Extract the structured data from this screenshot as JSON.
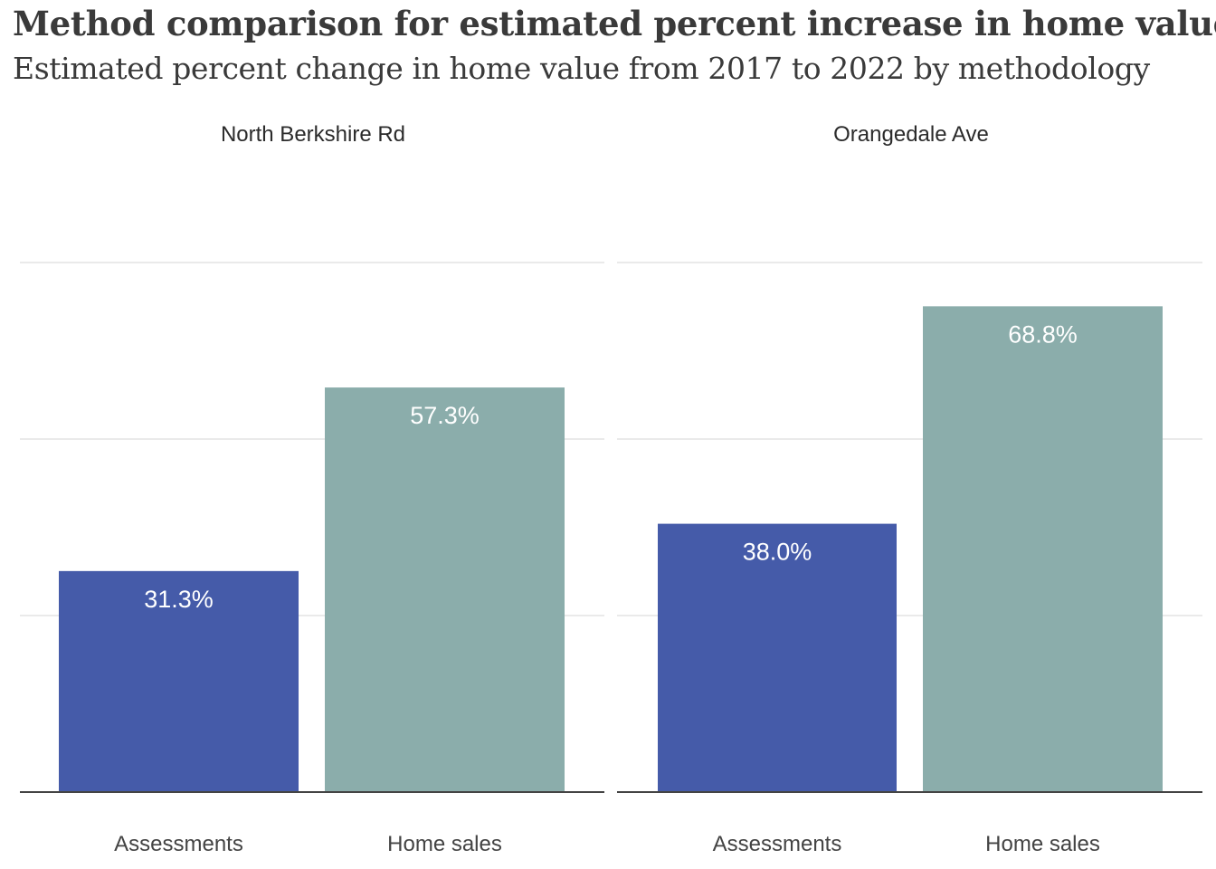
{
  "title": "Method comparison for estimated percent increase in home value",
  "subtitle": "Estimated percent change in home value from 2017 to 2022 by methodology",
  "chart_data": {
    "type": "bar",
    "layout": "small-multiples",
    "grid": true,
    "ylim": [
      0,
      100
    ],
    "gridlines": [
      25,
      50,
      75
    ],
    "colors": {
      "Assessments": "#455ba9",
      "Home sales": "#8badab",
      "axis": "#444444",
      "grid": "#d6d6d6"
    },
    "panels": [
      {
        "title": "North Berkshire Rd",
        "categories": [
          "Assessments",
          "Home sales"
        ],
        "values": [
          31.3,
          57.3
        ],
        "labels": [
          "31.3%",
          "57.3%"
        ]
      },
      {
        "title": "Orangedale Ave",
        "categories": [
          "Assessments",
          "Home sales"
        ],
        "values": [
          38.0,
          68.8
        ],
        "labels": [
          "38.0%",
          "68.8%"
        ]
      }
    ]
  }
}
